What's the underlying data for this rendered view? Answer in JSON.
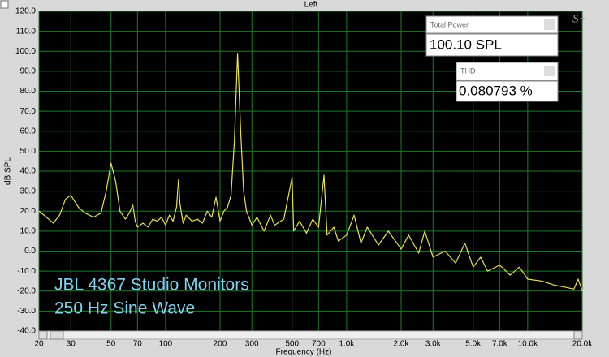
{
  "chart_data": {
    "type": "line",
    "title": "Left",
    "y_label": "dB SPL",
    "x_label": "Frequency (Hz)",
    "xscale": "log",
    "grid": true,
    "color": "#e8e05a",
    "xlim": [
      20,
      20000
    ],
    "ylim": [
      -40,
      120
    ],
    "xticks": [
      20,
      30,
      50,
      70,
      100,
      200,
      300,
      500,
      700,
      {
        "value": 1000,
        "label": "1.0k"
      },
      {
        "value": 2000,
        "label": "2.0k"
      },
      {
        "value": 3000,
        "label": "3.0k"
      },
      {
        "value": 5000,
        "label": "5.0k"
      },
      {
        "value": 7000,
        "label": "7.0k"
      },
      {
        "value": 10000,
        "label": "10.0k"
      },
      {
        "value": 20000,
        "label": "20.0k"
      }
    ],
    "yticks": [
      {
        "value": 120,
        "label": "120.0"
      },
      {
        "value": 110,
        "label": "110.0"
      },
      {
        "value": 100,
        "label": "100.0"
      },
      {
        "value": 90,
        "label": "90.0"
      },
      {
        "value": 80,
        "label": "80.0"
      },
      {
        "value": 70,
        "label": "70.0"
      },
      {
        "value": 60,
        "label": "60.0"
      },
      {
        "value": 50,
        "label": "50.0"
      },
      {
        "value": 40,
        "label": "40.0"
      },
      {
        "value": 30,
        "label": "30.0"
      },
      {
        "value": 20,
        "label": "20.0"
      },
      {
        "value": 10,
        "label": "10.0"
      },
      {
        "value": 0,
        "label": "0.0"
      },
      {
        "value": -10,
        "label": "-10.0"
      },
      {
        "value": -20,
        "label": "-20.0"
      },
      {
        "value": -30,
        "label": "-30.0"
      },
      {
        "value": -40,
        "label": "-40.0"
      }
    ],
    "x": [
      20,
      22,
      24,
      26,
      28,
      30,
      33,
      36,
      40,
      44,
      47,
      50,
      53,
      56,
      60,
      63,
      66,
      68,
      70,
      75,
      80,
      85,
      90,
      95,
      100,
      105,
      110,
      115,
      118,
      120,
      125,
      130,
      140,
      150,
      160,
      170,
      180,
      190,
      200,
      210,
      220,
      230,
      240,
      250,
      260,
      270,
      280,
      300,
      320,
      350,
      380,
      400,
      450,
      500,
      510,
      550,
      600,
      650,
      700,
      750,
      780,
      850,
      900,
      1000,
      1100,
      1200,
      1300,
      1500,
      1700,
      2000,
      2200,
      2500,
      2700,
      3000,
      3500,
      4000,
      4500,
      5000,
      5500,
      6000,
      7000,
      8000,
      9000,
      10000,
      12000,
      14000,
      16000,
      18000,
      19000,
      20000
    ],
    "values": [
      20,
      17,
      14,
      18,
      26,
      28,
      22,
      19,
      17,
      19,
      30,
      44,
      35,
      20,
      16,
      19,
      23,
      15,
      12,
      14,
      12,
      16,
      15,
      17,
      13,
      18,
      15,
      22,
      36,
      24,
      14,
      18,
      15,
      16,
      14,
      20,
      17,
      27,
      15,
      20,
      22,
      28,
      55,
      99,
      60,
      30,
      20,
      13,
      17,
      10,
      18,
      13,
      16,
      37,
      10,
      15,
      9,
      16,
      12,
      38,
      8,
      12,
      5,
      8,
      18,
      4,
      12,
      3,
      10,
      1,
      8,
      -1,
      10,
      -3,
      0,
      -6,
      4,
      -8,
      -3,
      -10,
      -7,
      -12,
      -8,
      -14,
      -15,
      -17,
      -18,
      -19,
      -14,
      -20
    ],
    "panels": [
      {
        "label": "Total Power",
        "value": "100.10 SPL"
      },
      {
        "label": "THD",
        "value": "0.080793 %"
      }
    ],
    "annotations": [
      "JBL 4367 Studio Monitors",
      "250 Hz Sine Wave"
    ],
    "logo": "S+"
  }
}
